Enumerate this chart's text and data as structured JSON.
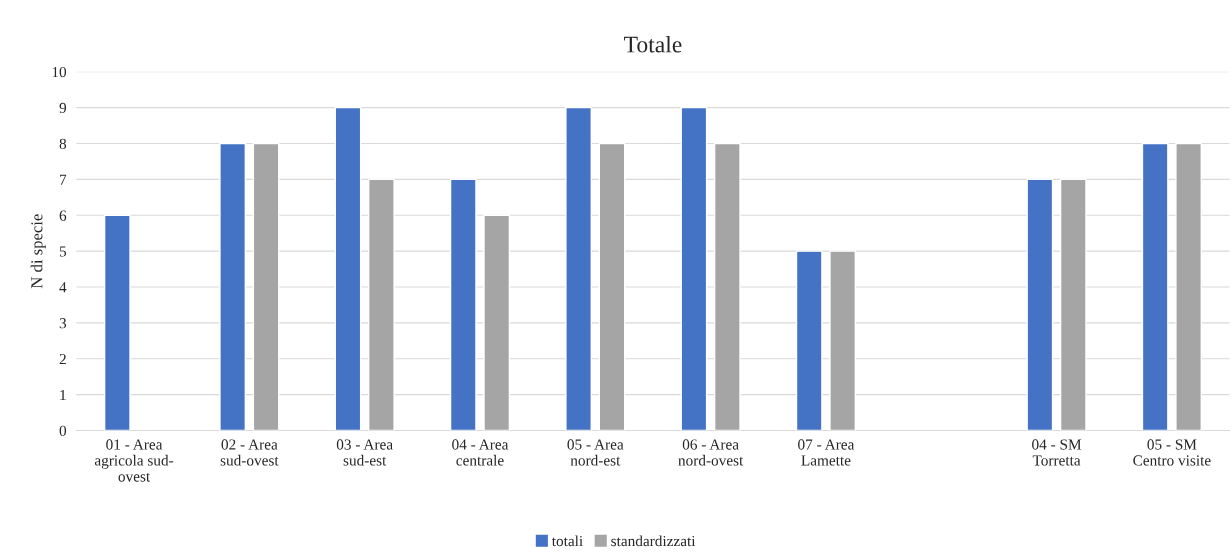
{
  "chart_data": {
    "type": "bar",
    "title": "Totale",
    "ylabel": "N di specie",
    "categories": [
      "01 - Area\nagricola sud-\novest",
      "02 - Area\nsud-ovest",
      "03 - Area\nsud-est",
      "04 - Area\ncentrale",
      "05 - Area\nnord-est",
      "06 - Area\nnord-ovest",
      "07 - Area\nLamette",
      null,
      "04 - SM\nTorretta",
      "05 - SM\nCentro visite"
    ],
    "series": [
      {
        "name": "totali",
        "color": "#4472c4",
        "values": [
          6,
          8,
          9,
          7,
          9,
          9,
          5,
          null,
          7,
          8
        ]
      },
      {
        "name": "standardizzati",
        "color": "#a5a5a5",
        "values": [
          null,
          8,
          7,
          6,
          8,
          8,
          5,
          null,
          7,
          8
        ]
      }
    ],
    "ylim": [
      0,
      10
    ],
    "yticks": [
      0,
      1,
      2,
      3,
      4,
      5,
      6,
      7,
      8,
      9,
      10
    ],
    "grid": "y",
    "legend": "bottom"
  }
}
